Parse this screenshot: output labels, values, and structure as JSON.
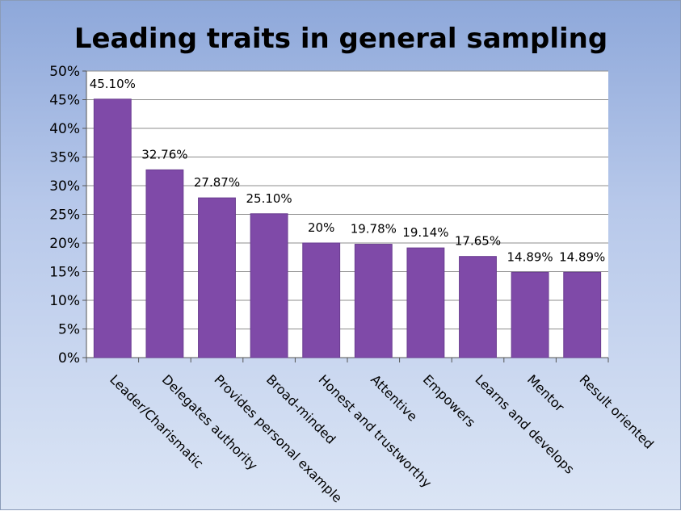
{
  "chart_data": {
    "type": "bar",
    "title": "Leading traits in general sampling",
    "categories": [
      "Leader/Charismatic",
      "Delegates authority",
      "Provides personal example",
      "Broad-minded",
      "Honest and trustworthy",
      "Attentive",
      "Empowers",
      "Learns and develops",
      "Mentor",
      "Result oriented"
    ],
    "values": [
      45.1,
      32.76,
      27.87,
      25.1,
      20,
      19.78,
      19.14,
      17.65,
      14.89,
      14.89
    ],
    "data_labels": [
      "45.10%",
      "32.76%",
      "27.87%",
      "25.10%",
      "20%",
      "19.78%",
      "19.14%",
      "17.65%",
      "14.89%",
      "14.89%"
    ],
    "ylim": [
      0,
      50
    ],
    "yticks": [
      0,
      5,
      10,
      15,
      20,
      25,
      30,
      35,
      40,
      45,
      50
    ],
    "ytick_labels": [
      "0%",
      "5%",
      "10%",
      "15%",
      "20%",
      "25%",
      "30%",
      "35%",
      "40%",
      "45%",
      "50%"
    ],
    "xlabel": "",
    "ylabel": "",
    "grid": true,
    "legend": "none",
    "colors": {
      "bar": "#7f4aa8",
      "bar_edge": "#6a3d90",
      "plot_bg": "#ffffff",
      "grid": "#8c8c8c"
    }
  }
}
